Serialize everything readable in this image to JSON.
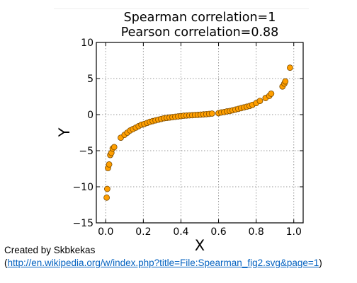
{
  "chart_data": {
    "type": "scatter",
    "title": [
      "Spearman correlation=1",
      "Pearson correlation=0.88"
    ],
    "xlabel": "X",
    "ylabel": "Y",
    "xlim": [
      -0.05,
      1.05
    ],
    "ylim": [
      -15,
      10
    ],
    "xticks": [
      0.0,
      0.2,
      0.4,
      0.6,
      0.8,
      1.0
    ],
    "xtick_labels": [
      "0.0",
      "0.2",
      "0.4",
      "0.6",
      "0.8",
      "1.0"
    ],
    "yticks": [
      -15,
      -10,
      -5,
      0,
      5,
      10
    ],
    "ytick_labels": [
      "−15",
      "−10",
      "−5",
      "0",
      "5",
      "10"
    ],
    "grid": true,
    "marker_color": "#ff9f00",
    "marker_edge": "#7a4a00",
    "x": [
      0.005,
      0.008,
      0.012,
      0.018,
      0.024,
      0.03,
      0.037,
      0.045,
      0.08,
      0.1,
      0.115,
      0.13,
      0.145,
      0.16,
      0.175,
      0.19,
      0.205,
      0.22,
      0.235,
      0.25,
      0.265,
      0.28,
      0.295,
      0.31,
      0.325,
      0.34,
      0.355,
      0.37,
      0.385,
      0.4,
      0.415,
      0.43,
      0.445,
      0.46,
      0.475,
      0.49,
      0.505,
      0.52,
      0.535,
      0.55,
      0.565,
      0.6,
      0.615,
      0.63,
      0.645,
      0.66,
      0.675,
      0.69,
      0.705,
      0.72,
      0.735,
      0.75,
      0.765,
      0.78,
      0.8,
      0.82,
      0.85,
      0.87,
      0.88,
      0.94,
      0.95,
      0.955,
      0.98
    ],
    "y": [
      -11.5,
      -10.3,
      -7.4,
      -6.9,
      -5.6,
      -5.3,
      -4.7,
      -4.5,
      -3.2,
      -2.8,
      -2.5,
      -2.2,
      -2.0,
      -1.8,
      -1.6,
      -1.4,
      -1.3,
      -1.15,
      -1.0,
      -0.9,
      -0.8,
      -0.7,
      -0.6,
      -0.5,
      -0.45,
      -0.4,
      -0.35,
      -0.3,
      -0.25,
      -0.2,
      -0.15,
      -0.12,
      -0.1,
      -0.08,
      -0.05,
      -0.03,
      0.0,
      0.03,
      0.06,
      0.1,
      0.15,
      0.2,
      0.3,
      0.35,
      0.45,
      0.5,
      0.6,
      0.7,
      0.8,
      0.9,
      1.0,
      1.1,
      1.2,
      1.35,
      1.6,
      1.9,
      2.3,
      2.6,
      2.9,
      3.9,
      4.3,
      4.6,
      6.5
    ]
  },
  "footer": {
    "credit": "Created by Skbkekas",
    "source_open": "(",
    "source_url": "http://en.wikipedia.org/w/index.php?title=File:Spearman_fig2.svg&page=1",
    "source_close": ")"
  }
}
